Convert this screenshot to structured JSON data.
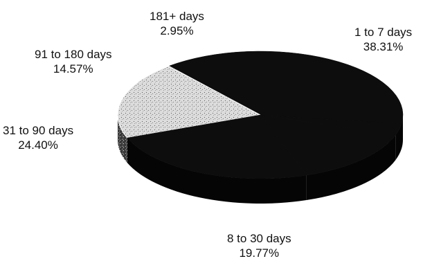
{
  "chart_data": {
    "type": "pie",
    "title": "",
    "three_d": true,
    "legend": "none",
    "slices": [
      {
        "label": "1 to 7 days",
        "percent": "38.31%",
        "value": 38.31,
        "color": "#0d0d0d"
      },
      {
        "label": "8 to 30 days",
        "percent": "19.77%",
        "value": 19.77,
        "color": "#e6e6e6"
      },
      {
        "label": "31 to 90 days",
        "percent": "24.40%",
        "value": 24.4,
        "color": "#0d0d0d"
      },
      {
        "label": "91 to 180 days",
        "percent": "14.57%",
        "value": 14.57,
        "color": "#0d0d0d"
      },
      {
        "label": "181+ days",
        "percent": "2.95%",
        "value": 2.95,
        "color": "#0d0d0d"
      }
    ]
  }
}
